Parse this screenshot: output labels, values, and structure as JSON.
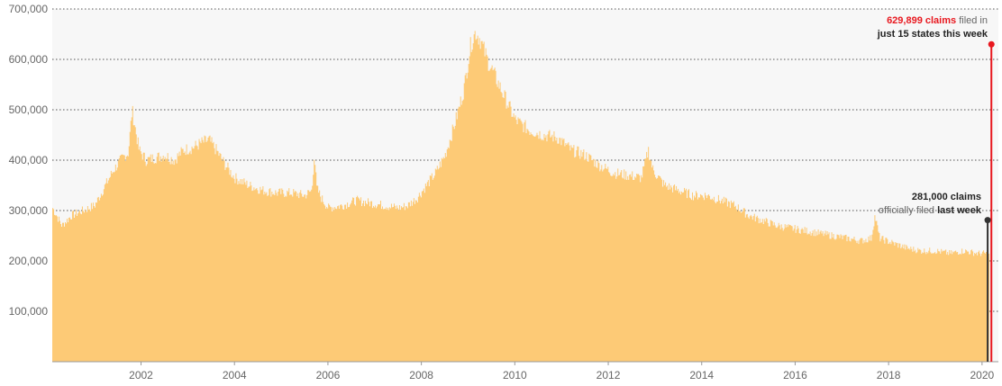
{
  "chart_data": {
    "type": "area",
    "title": "",
    "xlabel": "",
    "ylabel": "",
    "xlim": [
      2000.1,
      2020.35
    ],
    "ylim": [
      0,
      700000
    ],
    "grid": true,
    "y_ticks": [
      "700,000",
      "600,000",
      "500,000",
      "400,000",
      "300,000",
      "200,000",
      "100,000"
    ],
    "y_tick_values": [
      700000,
      600000,
      500000,
      400000,
      300000,
      200000,
      100000
    ],
    "x_ticks": [
      "2002",
      "2004",
      "2006",
      "2008",
      "2010",
      "2012",
      "2014",
      "2016",
      "2018",
      "2020"
    ],
    "x_tick_values": [
      2002,
      2004,
      2006,
      2008,
      2010,
      2012,
      2014,
      2016,
      2018,
      2020
    ],
    "series": [
      {
        "color": "#fdca76",
        "x": [
          2000.1,
          2000.3,
          2000.5,
          2000.75,
          2001.0,
          2001.2,
          2001.4,
          2001.6,
          2001.72,
          2001.8,
          2001.95,
          2002.1,
          2002.3,
          2002.5,
          2002.7,
          2002.9,
          2003.1,
          2003.3,
          2003.45,
          2003.6,
          2003.8,
          2004.0,
          2004.3,
          2004.6,
          2004.9,
          2005.2,
          2005.5,
          2005.65,
          2005.7,
          2005.75,
          2005.85,
          2006.0,
          2006.3,
          2006.6,
          2006.9,
          2007.2,
          2007.5,
          2007.7,
          2007.9,
          2008.1,
          2008.3,
          2008.5,
          2008.7,
          2008.9,
          2009.05,
          2009.15,
          2009.25,
          2009.4,
          2009.6,
          2009.8,
          2010.0,
          2010.3,
          2010.6,
          2010.9,
          2011.2,
          2011.5,
          2011.8,
          2012.1,
          2012.4,
          2012.7,
          2012.85,
          2012.95,
          2013.2,
          2013.5,
          2013.8,
          2014.1,
          2014.4,
          2014.7,
          2015.0,
          2015.3,
          2015.6,
          2015.9,
          2016.2,
          2016.5,
          2016.8,
          2017.1,
          2017.4,
          2017.62,
          2017.7,
          2017.8,
          2018.1,
          2018.4,
          2018.7,
          2019.0,
          2019.3,
          2019.6,
          2019.9,
          2020.1,
          2020.15
        ],
        "values": [
          305000,
          270000,
          290000,
          300000,
          310000,
          345000,
          380000,
          405000,
          415000,
          500000,
          420000,
          400000,
          405000,
          410000,
          400000,
          420000,
          425000,
          435000,
          440000,
          420000,
          390000,
          365000,
          350000,
          340000,
          335000,
          335000,
          330000,
          340000,
          415000,
          345000,
          325000,
          305000,
          310000,
          320000,
          315000,
          310000,
          305000,
          310000,
          325000,
          350000,
          375000,
          410000,
          470000,
          540000,
          630000,
          655000,
          640000,
          600000,
          560000,
          520000,
          480000,
          460000,
          450000,
          445000,
          420000,
          410000,
          390000,
          375000,
          370000,
          365000,
          420000,
          380000,
          350000,
          340000,
          330000,
          330000,
          320000,
          310000,
          290000,
          280000,
          270000,
          265000,
          260000,
          255000,
          250000,
          245000,
          240000,
          245000,
          290000,
          245000,
          235000,
          225000,
          220000,
          220000,
          215000,
          220000,
          215000,
          215000,
          210000
        ]
      }
    ],
    "annotations": [
      {
        "x": 2020.2,
        "value": 629899,
        "color": "#e8181f",
        "bold_red": "629,899 claims",
        "light": " filed in",
        "bold_line2": "just 15 states this week"
      },
      {
        "x": 2020.12,
        "value": 281000,
        "color": "#333333",
        "bold_line1": "281,000 claims",
        "light": "officially filed ",
        "bold_tail": "last week"
      }
    ]
  }
}
